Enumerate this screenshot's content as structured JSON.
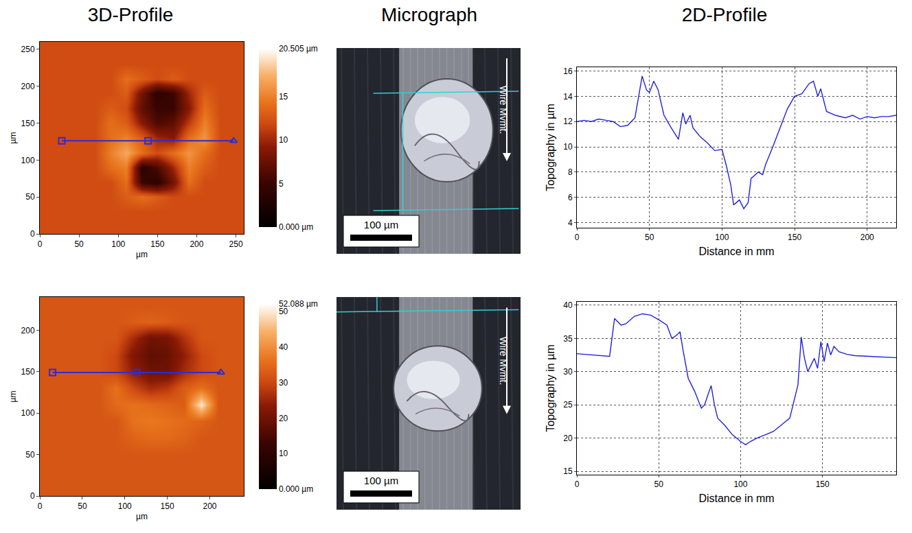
{
  "headers": [
    "3D-Profile",
    "Micrograph",
    "2D-Profile"
  ],
  "micrographs": [
    {
      "scale_bar": "100 µm",
      "arrow_label": "Wire Mvmt."
    },
    {
      "scale_bar": "100 µm",
      "arrow_label": "Wire Mvmt."
    }
  ],
  "chart_data": [
    {
      "type": "heatmap",
      "xlabel": "µm",
      "ylabel": "µm",
      "xlim": [
        0,
        260
      ],
      "ylim": [
        0,
        260
      ],
      "xticks": [
        0,
        50,
        100,
        150,
        200,
        250
      ],
      "yticks": [
        0,
        50,
        100,
        150,
        200,
        250
      ],
      "x": [
        10,
        30,
        50,
        70,
        90,
        110,
        130,
        150,
        170,
        190,
        210,
        230,
        250
      ],
      "y": [
        10,
        30,
        50,
        70,
        90,
        110,
        130,
        150,
        170,
        190,
        210,
        230,
        250
      ],
      "z": [
        [
          12,
          12,
          12,
          12,
          12,
          12,
          12,
          12,
          12,
          12,
          12,
          12,
          12
        ],
        [
          12,
          12,
          12,
          12,
          12,
          12,
          12,
          12,
          12,
          12,
          12,
          12,
          12
        ],
        [
          12,
          12,
          12,
          12,
          12,
          13,
          14,
          13,
          12,
          12,
          12,
          12,
          12
        ],
        [
          12,
          12,
          12,
          12,
          12,
          14,
          5,
          4,
          8,
          14,
          12,
          12,
          12
        ],
        [
          12,
          12,
          12,
          12,
          14,
          15,
          4,
          6,
          10,
          15,
          13,
          12,
          12
        ],
        [
          12,
          12,
          12,
          12,
          15,
          17,
          14,
          12,
          14,
          16,
          14,
          12,
          12
        ],
        [
          12,
          12,
          12,
          12,
          14,
          15,
          13,
          10,
          9,
          14,
          16,
          12,
          12
        ],
        [
          12,
          12,
          12,
          12,
          14,
          13,
          9,
          6,
          7,
          11,
          15,
          12,
          12
        ],
        [
          12,
          12,
          12,
          12,
          13,
          12,
          7,
          5,
          5,
          9,
          14,
          12,
          12
        ],
        [
          12,
          12,
          12,
          12,
          12,
          13,
          8,
          4,
          5,
          10,
          13,
          12,
          12
        ],
        [
          12,
          12,
          12,
          12,
          12,
          14,
          13,
          12,
          13,
          12,
          12,
          12,
          12
        ],
        [
          12,
          12,
          12,
          12,
          12,
          12,
          12,
          12,
          12,
          12,
          12,
          12,
          12
        ],
        [
          12,
          12,
          12,
          12,
          12,
          12,
          12,
          12,
          12,
          12,
          12,
          12,
          12
        ]
      ],
      "colorbar": {
        "range": [
          0,
          20.505
        ],
        "ticks": [
          {
            "value": 0,
            "label": "0.000 µm"
          },
          5,
          10,
          15,
          {
            "value": 20.505,
            "label": "20.505 µm"
          }
        ]
      },
      "profile_line": {
        "x": [
          28,
          138,
          247
        ],
        "y": [
          126,
          126,
          126
        ],
        "color": "#2d2dd0"
      }
    },
    {
      "type": "line",
      "xlabel": "Distance in mm",
      "ylabel": "Topography in µm",
      "xlim": [
        0,
        220
      ],
      "ylim": [
        3.6,
        16.3
      ],
      "xticks": [
        0,
        50,
        100,
        150,
        200
      ],
      "yticks": [
        4,
        6,
        8,
        10,
        12,
        14,
        16
      ],
      "grid": true,
      "color": "#2020e0",
      "x": [
        0,
        5,
        10,
        15,
        20,
        25,
        30,
        35,
        40,
        45,
        48,
        50,
        53,
        56,
        60,
        65,
        70,
        73,
        75,
        78,
        80,
        85,
        90,
        95,
        100,
        103,
        106,
        108,
        110,
        112,
        115,
        118,
        120,
        125,
        128,
        130,
        135,
        140,
        145,
        150,
        155,
        160,
        163,
        166,
        168,
        172,
        178,
        185,
        190,
        195,
        200,
        205,
        210,
        215,
        220
      ],
      "values": [
        12.0,
        12.1,
        12.0,
        12.2,
        12.1,
        12.0,
        11.6,
        11.7,
        12.3,
        15.6,
        14.5,
        14.3,
        15.2,
        14.5,
        12.5,
        11.5,
        10.6,
        12.7,
        11.8,
        12.5,
        11.5,
        10.8,
        10.3,
        9.7,
        9.8,
        8.5,
        7.0,
        5.4,
        5.6,
        5.8,
        5.1,
        5.6,
        7.5,
        8.0,
        7.8,
        8.6,
        10.0,
        11.5,
        13.0,
        14.0,
        14.2,
        15.0,
        15.2,
        14.0,
        14.6,
        12.8,
        12.5,
        12.3,
        12.5,
        12.2,
        12.4,
        12.3,
        12.4,
        12.4,
        12.5
      ]
    },
    {
      "type": "heatmap",
      "xlabel": "µm",
      "ylabel": "µm",
      "xlim": [
        0,
        240
      ],
      "ylim": [
        0,
        240
      ],
      "xticks": [
        0,
        50,
        100,
        150,
        200
      ],
      "yticks": [
        0,
        50,
        100,
        150,
        200
      ],
      "x": [
        10,
        30,
        50,
        70,
        90,
        110,
        130,
        150,
        170,
        190,
        210,
        230
      ],
      "y": [
        10,
        30,
        50,
        70,
        90,
        110,
        130,
        150,
        170,
        190,
        210,
        230
      ],
      "z": [
        [
          32,
          32,
          32,
          32,
          32,
          32,
          32,
          32,
          32,
          32,
          32,
          32
        ],
        [
          32,
          32,
          32,
          32,
          32,
          32,
          32,
          32,
          32,
          32,
          32,
          32
        ],
        [
          32,
          32,
          32,
          32,
          32,
          32,
          32,
          32,
          32,
          32,
          32,
          32
        ],
        [
          32,
          32,
          32,
          32,
          32,
          34,
          35,
          35,
          34,
          32,
          32,
          32
        ],
        [
          32,
          32,
          32,
          32,
          32,
          36,
          37,
          36,
          35,
          34,
          32,
          32
        ],
        [
          32,
          32,
          32,
          32,
          35,
          36,
          35,
          34,
          33,
          50,
          32,
          32
        ],
        [
          32,
          32,
          32,
          32,
          36,
          30,
          26,
          28,
          33,
          36,
          32,
          32
        ],
        [
          32,
          32,
          32,
          32,
          30,
          24,
          20,
          20,
          26,
          30,
          32,
          32
        ],
        [
          32,
          32,
          32,
          32,
          30,
          22,
          18,
          19,
          24,
          30,
          32,
          32
        ],
        [
          32,
          32,
          32,
          32,
          32,
          26,
          20,
          21,
          27,
          32,
          32,
          32
        ],
        [
          32,
          32,
          32,
          32,
          32,
          33,
          34,
          33,
          32,
          32,
          32,
          32
        ],
        [
          32,
          32,
          32,
          32,
          32,
          32,
          32,
          32,
          32,
          32,
          32,
          32
        ]
      ],
      "colorbar": {
        "range": [
          0,
          52.088
        ],
        "ticks": [
          {
            "value": 0,
            "label": "0.000 µm"
          },
          10,
          20,
          30,
          40,
          50,
          {
            "value": 52.088,
            "label": "52.088 µm"
          }
        ]
      },
      "profile_line": {
        "x": [
          15,
          114,
          213
        ],
        "y": [
          149,
          149,
          149
        ],
        "color": "#2d2dd0"
      }
    },
    {
      "type": "line",
      "xlabel": "Distance in mm",
      "ylabel": "Topography in µm",
      "xlim": [
        0,
        195
      ],
      "ylim": [
        14.5,
        40.5
      ],
      "xticks": [
        0,
        50,
        100,
        150
      ],
      "yticks": [
        15,
        20,
        25,
        30,
        35,
        40
      ],
      "grid": true,
      "color": "#2020e0",
      "x": [
        0,
        10,
        20,
        23,
        27,
        30,
        35,
        40,
        45,
        50,
        55,
        58,
        61,
        63,
        65,
        68,
        72,
        76,
        78,
        80,
        82,
        84,
        86,
        90,
        95,
        100,
        103,
        106,
        110,
        115,
        120,
        125,
        130,
        135,
        137,
        139,
        141,
        143,
        145,
        147,
        149,
        151,
        153,
        155,
        157,
        160,
        165,
        170,
        180,
        190,
        195
      ],
      "values": [
        32.7,
        32.5,
        32.3,
        38.0,
        37.0,
        37.2,
        38.3,
        38.7,
        38.5,
        37.8,
        37.0,
        35.0,
        35.5,
        36.0,
        33.0,
        29.0,
        27.0,
        24.5,
        25.0,
        26.5,
        27.9,
        25.0,
        23.0,
        22.0,
        20.5,
        19.5,
        19.0,
        19.5,
        20.0,
        20.5,
        21.0,
        22.0,
        23.0,
        28.0,
        35.2,
        32.0,
        30.0,
        31.0,
        32.0,
        30.5,
        34.5,
        31.5,
        34.3,
        32.5,
        33.8,
        33.0,
        32.6,
        32.4,
        32.3,
        32.2,
        32.1
      ]
    }
  ]
}
